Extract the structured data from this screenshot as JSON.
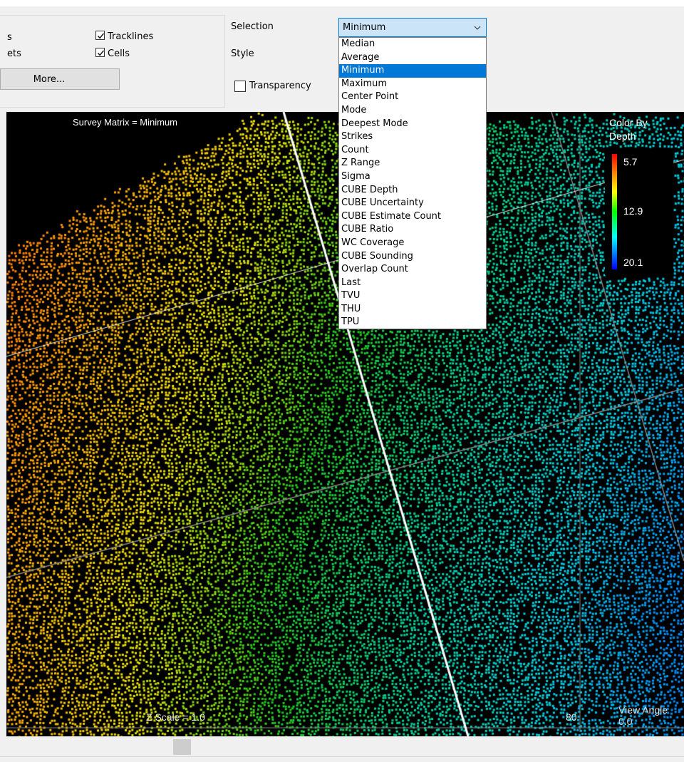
{
  "options_panel": {
    "partial_label_1": "s",
    "partial_label_2": "ets",
    "tracklines_label": "Tracklines",
    "tracklines_checked": true,
    "cells_label": "Cells",
    "cells_checked": true,
    "more_button": "More...",
    "selection_label": "Selection",
    "style_label": "Style",
    "transparency_label": "Transparency",
    "transparency_checked": false
  },
  "selection_dropdown": {
    "value": "Minimum",
    "options": [
      "Median",
      "Average",
      "Minimum",
      "Maximum",
      "Center Point",
      "Mode",
      "Deepest Mode",
      "Strikes",
      "Count",
      "Z Range",
      "Sigma",
      "CUBE Depth",
      "CUBE Uncertainty",
      "CUBE Estimate Count",
      "CUBE Ratio",
      "WC Coverage",
      "CUBE Sounding",
      "Overlap Count",
      "Last",
      "TVU",
      "THU",
      "TPU"
    ],
    "selected_index": 2
  },
  "viewer": {
    "title": "Survey Matrix = Minimum",
    "legend": {
      "title_line1": "Color By",
      "title_line2": "Depth",
      "max_label": "5.7",
      "mid_label": "12.9",
      "min_label": "20.1"
    },
    "z_scale": "Z Scale = 1.0",
    "tick_label": "80",
    "view_angle_label": "View Angle",
    "view_angle_value": "0.0"
  },
  "colors": {
    "accent": "#0078d7",
    "combo_bg": "#cce4f7",
    "viewer_bg": "#000000"
  }
}
